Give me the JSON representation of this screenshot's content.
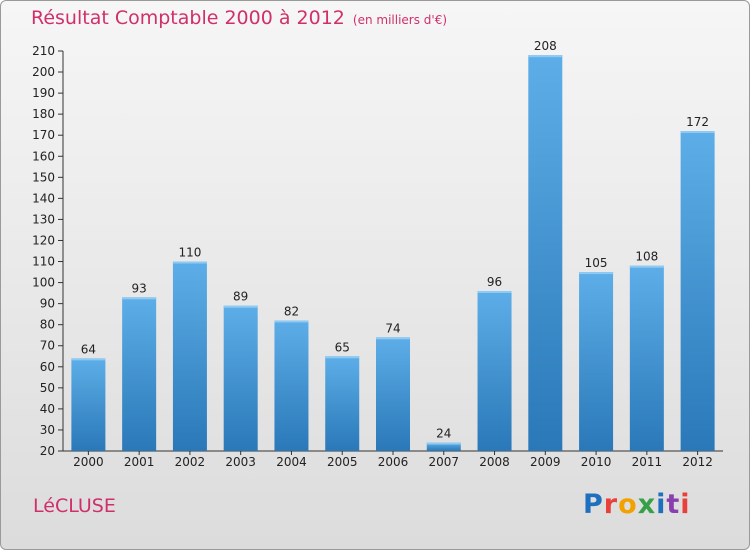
{
  "header": {
    "title": "Résultat Comptable 2000 à 2012",
    "subtitle": "(en milliers d'€)"
  },
  "footer": {
    "commune": "LéCLUSE",
    "logo_text": "Proxiti"
  },
  "colors": {
    "title": "#d0306a",
    "bar_light": "#5daee8",
    "bar_dark": "#2a78b8",
    "logo_letters": [
      "#1f6fbf",
      "#e8403a",
      "#f2a200",
      "#35a047",
      "#1f6fbf",
      "#8a3fae",
      "#e8403a"
    ]
  },
  "chart_data": {
    "type": "bar",
    "title": "Résultat Comptable 2000 à 2012",
    "subtitle": "(en milliers d'€)",
    "xlabel": "",
    "ylabel": "",
    "categories": [
      "2000",
      "2001",
      "2002",
      "2003",
      "2004",
      "2005",
      "2006",
      "2007",
      "2008",
      "2009",
      "2010",
      "2011",
      "2012"
    ],
    "values": [
      64,
      93,
      110,
      89,
      82,
      65,
      74,
      24,
      96,
      208,
      105,
      108,
      172
    ],
    "ylim": [
      20,
      210
    ],
    "yticks": [
      20,
      30,
      40,
      50,
      60,
      70,
      80,
      90,
      100,
      110,
      120,
      130,
      140,
      150,
      160,
      170,
      180,
      190,
      200,
      210
    ],
    "grid": false,
    "data_labels": true
  }
}
